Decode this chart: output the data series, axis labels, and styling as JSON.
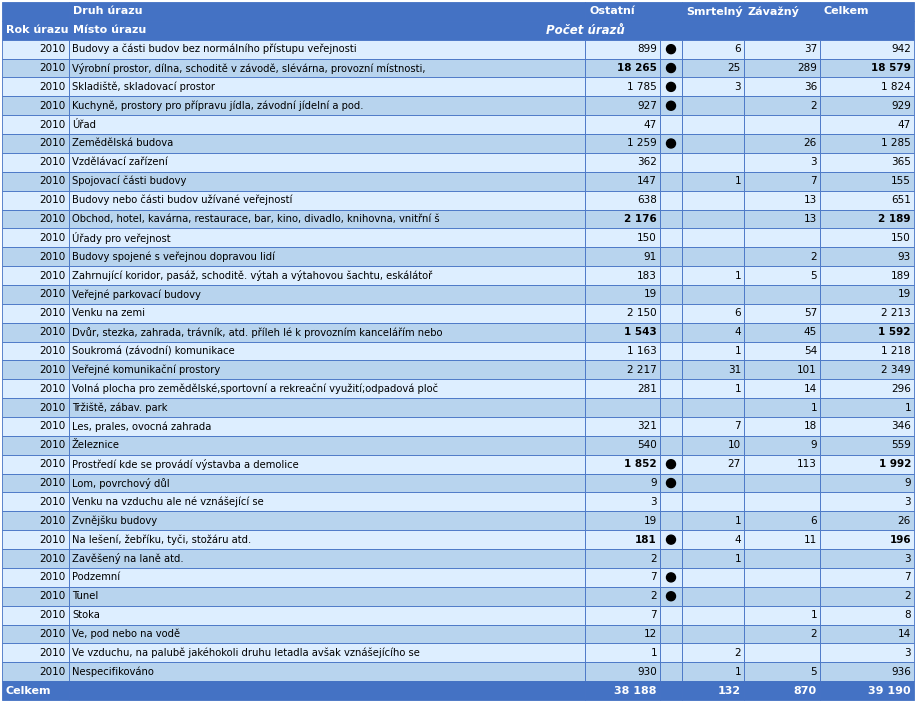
{
  "header1": [
    "",
    "Druh úrazu",
    "Ostatní",
    "Smrtelný",
    "Závažný",
    "Celkem"
  ],
  "header2_col01": [
    "Rok úrazu",
    "Místo úrazu"
  ],
  "header2_span": "Počet úrazů",
  "rows": [
    [
      "2010",
      "Budovy a části budov bez normálního přístupu veřejnosti",
      "899",
      true,
      "6",
      "37",
      "942",
      false
    ],
    [
      "2010",
      "Výrobní prostor, dílna, schoditě v závodě, slévárna, provozní místnosti,",
      "18 265",
      true,
      "25",
      "289",
      "18 579",
      true
    ],
    [
      "2010",
      "Skladiště, skladovací prostor",
      "1 785",
      true,
      "3",
      "36",
      "1 824",
      false
    ],
    [
      "2010",
      "Kuchyně, prostory pro přípravu jídla, závodní jídelní a pod.",
      "927",
      true,
      "",
      "2",
      "929",
      false
    ],
    [
      "2010",
      "Úřad",
      "47",
      false,
      "",
      "",
      "47",
      false
    ],
    [
      "2010",
      "Zemědělská budova",
      "1 259",
      true,
      "",
      "26",
      "1 285",
      false
    ],
    [
      "2010",
      "Vzdělávací zařízení",
      "362",
      false,
      "",
      "3",
      "365",
      false
    ],
    [
      "2010",
      "Spojovací části budovy",
      "147",
      false,
      "1",
      "7",
      "155",
      false
    ],
    [
      "2010",
      "Budovy nebo části budov užívané veřejností",
      "638",
      false,
      "",
      "13",
      "651",
      false
    ],
    [
      "2010",
      "Obchod, hotel, kavárna, restaurace, bar, kino, divadlo, knihovna, vnitřní š",
      "2 176",
      false,
      "",
      "13",
      "2 189",
      true
    ],
    [
      "2010",
      "Úřady pro veřejnost",
      "150",
      false,
      "",
      "",
      "150",
      false
    ],
    [
      "2010",
      "Budovy spojené s veřejnou dopravou lidí",
      "91",
      false,
      "",
      "2",
      "93",
      false
    ],
    [
      "2010",
      "Zahrnující koridor, pasáž, schoditě. výtah a výtahovou šachtu, eskálátoř",
      "183",
      false,
      "1",
      "5",
      "189",
      false
    ],
    [
      "2010",
      "Veřejné parkovací budovy",
      "19",
      false,
      "",
      "",
      "19",
      false
    ],
    [
      "2010",
      "Venku na zemi",
      "2 150",
      false,
      "6",
      "57",
      "2 213",
      false
    ],
    [
      "2010",
      "Dvůr, stezka, zahrada, trávník, atd. příleh lé k provozním kancelářím nebo",
      "1 543",
      false,
      "4",
      "45",
      "1 592",
      true
    ],
    [
      "2010",
      "Soukromá (závodní) komunikace",
      "1 163",
      false,
      "1",
      "54",
      "1 218",
      false
    ],
    [
      "2010",
      "Veřejné komunikační prostory",
      "2 217",
      false,
      "31",
      "101",
      "2 349",
      false
    ],
    [
      "2010",
      "Volná plocha pro zemědělské,sportovní a rekreační využití;odpadová ploč",
      "281",
      false,
      "1",
      "14",
      "296",
      false
    ],
    [
      "2010",
      "Tržiště, zábav. park",
      "",
      false,
      "",
      "1",
      "1",
      false
    ],
    [
      "2010",
      "Les, prales, ovocná zahrada",
      "321",
      false,
      "7",
      "18",
      "346",
      false
    ],
    [
      "2010",
      "Železnice",
      "540",
      false,
      "10",
      "9",
      "559",
      false
    ],
    [
      "2010",
      "Prostředí kde se provádí výstavba a demolice",
      "1 852",
      true,
      "27",
      "113",
      "1 992",
      true
    ],
    [
      "2010",
      "Lom, povrchový důl",
      "9",
      true,
      "",
      "",
      "9",
      false
    ],
    [
      "2010",
      "Venku na vzduchu ale né vznášející se",
      "3",
      false,
      "",
      "",
      "3",
      false
    ],
    [
      "2010",
      "Zvnějšku budovy",
      "19",
      false,
      "1",
      "6",
      "26",
      false
    ],
    [
      "2010",
      "Na lešení, žebříku, tyči, stožáru atd.",
      "181",
      true,
      "4",
      "11",
      "196",
      true
    ],
    [
      "2010",
      "Zavěšený na laně atd.",
      "2",
      false,
      "1",
      "",
      "3",
      false
    ],
    [
      "2010",
      "Podzemní",
      "7",
      true,
      "",
      "",
      "7",
      false
    ],
    [
      "2010",
      "Tunel",
      "2",
      true,
      "",
      "",
      "2",
      false
    ],
    [
      "2010",
      "Stoka",
      "7",
      false,
      "",
      "1",
      "8",
      false
    ],
    [
      "2010",
      "Ve, pod nebo na vodě",
      "12",
      false,
      "",
      "2",
      "14",
      false
    ],
    [
      "2010",
      "Ve vzduchu, na palubě jakéhokoli druhu letadla avšak vznášejícího se",
      "1",
      false,
      "2",
      "",
      "3",
      false
    ],
    [
      "2010",
      "Nespecifikováno",
      "930",
      false,
      "1",
      "5",
      "936",
      false
    ]
  ],
  "footer": [
    "Celkem",
    "",
    "38 188",
    "132",
    "870",
    "39 190"
  ],
  "hdr_bg": "#4472C4",
  "hdr_fg": "#FFFFFF",
  "cell_bg_even": "#DDEEFF",
  "cell_bg_odd": "#B8D4EE",
  "footer_bg": "#4472C4",
  "footer_fg": "#FFFFFF",
  "border_color": "#4472C4",
  "text_color": "#000000"
}
